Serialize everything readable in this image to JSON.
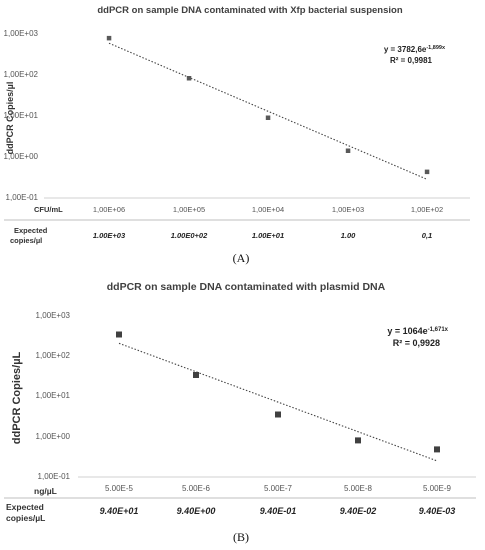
{
  "chart_data": [
    {
      "type": "scatter",
      "title": "ddPCR on sample DNA contaminated with Xfp bacterial suspension",
      "ylabel": "ddPCR Copies/µl",
      "y_scale": "log",
      "ylim": [
        0.1,
        1000
      ],
      "y_ticks": [
        "1,00E+03",
        "1,00E+02",
        "1,00E+01",
        "1,00E+00",
        "1,00E-01"
      ],
      "x_row_label": "CFU/mL",
      "categories": [
        "1,00E+06",
        "1,00E+05",
        "1,00E+04",
        "1,00E+03",
        "1,00E+02"
      ],
      "values": [
        750,
        80,
        8.8,
        1.4,
        0.43
      ],
      "expected_label": "Expected copies/µl",
      "expected": [
        "1.00E+03",
        "1.00E0+02",
        "1.00E+01",
        "1.00",
        "0,1"
      ],
      "trendline": {
        "type": "exponential",
        "equation": "y = 3782,6e",
        "exponent": "-1,899x",
        "r2": "R² = 0,9981",
        "a": 3782.6,
        "b": -1.899
      },
      "grid": false,
      "panel_label": "(A)",
      "marker_color": "#595959"
    },
    {
      "type": "scatter",
      "title": "ddPCR on sample DNA contaminated with plasmid DNA",
      "ylabel": "ddPCR Copies/µL",
      "y_scale": "log",
      "ylim": [
        0.1,
        1000
      ],
      "y_ticks": [
        "1,00E+03",
        "1,00E+02",
        "1,00E+01",
        "1,00E+00",
        "1,00E-01"
      ],
      "x_row_label": "ng/µL",
      "categories": [
        "5.00E-5",
        "5.00E-6",
        "5.00E-7",
        "5.00E-8",
        "5.00E-9"
      ],
      "values": [
        330,
        33,
        3.5,
        0.8,
        0.48
      ],
      "expected_label": "Expected copies/µL",
      "expected": [
        "9.40E+01",
        "9.40E+00",
        "9.40E-01",
        "9.40E-02",
        "9.40E-03"
      ],
      "trendline": {
        "type": "exponential",
        "equation": "y = 1064e",
        "exponent": "-1,671x",
        "r2": "R² = 0,9928",
        "a": 1064,
        "b": -1.671
      },
      "grid": false,
      "panel_label": "(B)",
      "marker_color": "#404040"
    }
  ]
}
